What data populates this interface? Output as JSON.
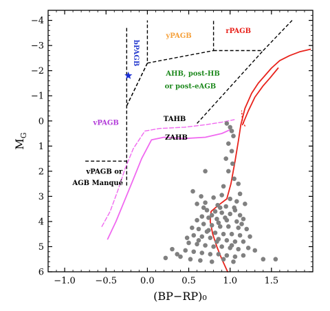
{
  "chart_data": {
    "type": "scatter",
    "xlabel": "(BP−RP)₀",
    "ylabel": "M_G",
    "xlim": [
      -1.2,
      2.0
    ],
    "ylim": [
      6.0,
      -4.4
    ],
    "y_inverted": true,
    "x_ticks": [
      -1.0,
      -0.5,
      0.0,
      0.5,
      1.0,
      1.5
    ],
    "x_tick_labels": [
      "−1.0",
      "−0.5",
      "0.0",
      "0.5",
      "1.0",
      "1.5"
    ],
    "y_ticks": [
      -4,
      -3,
      -2,
      -1,
      0,
      1,
      2,
      3,
      4,
      5,
      6
    ],
    "y_tick_labels": [
      "−4",
      "−3",
      "−2",
      "−1",
      "0",
      "1",
      "2",
      "3",
      "4",
      "5",
      "6"
    ],
    "grid": false,
    "region_labels": [
      {
        "text": "yPAGB",
        "x": 0.38,
        "y": -3.3,
        "color": "#f5a03a"
      },
      {
        "text": "rPAGB",
        "x": 1.1,
        "y": -3.5,
        "color": "#e8221b"
      },
      {
        "text": "bPAGB",
        "x": -0.16,
        "y": -2.7,
        "color": "#2a3fcf",
        "rotated": true
      },
      {
        "text": "AHB, post-HB",
        "x": 0.55,
        "y": -1.8,
        "color": "#1f8a1f"
      },
      {
        "text": "or post-eAGB",
        "x": 0.52,
        "y": -1.3,
        "color": "#1f8a1f"
      },
      {
        "text": "vPAGB",
        "x": -0.5,
        "y": 0.15,
        "color": "#b23bd9"
      },
      {
        "text": "TAHB",
        "x": 0.33,
        "y": 0.0,
        "color": "#000000"
      },
      {
        "text": "ZAHB",
        "x": 0.35,
        "y": 0.75,
        "color": "#000000"
      },
      {
        "text": "vPAGB or",
        "x": -0.52,
        "y": 2.1,
        "color": "#000000"
      },
      {
        "text": "AGB Manqué",
        "x": -0.6,
        "y": 2.55,
        "color": "#000000"
      }
    ],
    "boundary_lines": [
      {
        "points": [
          [
            -0.25,
            -3.7
          ],
          [
            -0.25,
            2.6
          ]
        ]
      },
      {
        "points": [
          [
            -0.25,
            -0.6
          ],
          [
            0.0,
            -2.3
          ],
          [
            0.0,
            -4.0
          ]
        ]
      },
      {
        "points": [
          [
            0.0,
            -2.3
          ],
          [
            0.8,
            -2.8
          ],
          [
            0.8,
            -4.0
          ]
        ]
      },
      {
        "points": [
          [
            0.8,
            -2.8
          ],
          [
            1.4,
            -2.8
          ]
        ]
      },
      {
        "points": [
          [
            1.4,
            -2.8
          ],
          [
            1.75,
            -4.0
          ]
        ]
      },
      {
        "points": [
          [
            -0.25,
            -0.6
          ],
          [
            0.0,
            -2.3
          ]
        ]
      },
      {
        "points": [
          [
            0.6,
            0.1
          ],
          [
            1.4,
            -2.8
          ]
        ]
      },
      {
        "points": [
          [
            -0.75,
            1.6
          ],
          [
            -0.25,
            1.6
          ]
        ]
      }
    ],
    "series": [
      {
        "style": "solid",
        "color": "#e8221b",
        "points": [
          [
            0.97,
            6.0
          ],
          [
            0.9,
            5.5
          ],
          [
            0.84,
            5.0
          ],
          [
            0.79,
            4.5
          ],
          [
            0.76,
            4.0
          ],
          [
            0.77,
            3.6
          ],
          [
            0.86,
            3.35
          ],
          [
            0.96,
            3.1
          ],
          [
            1.01,
            2.5
          ],
          [
            1.06,
            1.6
          ],
          [
            1.1,
            0.8
          ],
          [
            1.13,
            0.15
          ],
          [
            1.18,
            -0.5
          ],
          [
            1.26,
            -1.1
          ],
          [
            1.34,
            -1.5
          ],
          [
            1.42,
            -1.8
          ],
          [
            1.5,
            -2.1
          ],
          [
            1.6,
            -2.4
          ],
          [
            1.72,
            -2.6
          ],
          [
            1.84,
            -2.75
          ],
          [
            1.97,
            -2.85
          ]
        ]
      },
      {
        "style": "solid",
        "color": "#e8221b",
        "points": [
          [
            1.15,
            0.15
          ],
          [
            1.22,
            -0.4
          ],
          [
            1.3,
            -0.95
          ],
          [
            1.4,
            -1.4
          ],
          [
            1.48,
            -1.7
          ],
          [
            1.58,
            -2.1
          ]
        ]
      },
      {
        "style": "dotted",
        "color": "#e8221b",
        "points": [
          [
            1.18,
            0.2
          ],
          [
            1.15,
            0.0
          ],
          [
            1.14,
            -0.4
          ]
        ]
      },
      {
        "style": "solid",
        "color": "#f068f0",
        "points": [
          [
            -0.48,
            4.7
          ],
          [
            -0.38,
            4.0
          ],
          [
            -0.28,
            3.2
          ],
          [
            -0.18,
            2.4
          ],
          [
            -0.07,
            1.5
          ],
          [
            0.05,
            0.75
          ],
          [
            0.2,
            0.65
          ],
          [
            0.45,
            0.7
          ],
          [
            0.7,
            0.65
          ],
          [
            0.9,
            0.5
          ],
          [
            1.0,
            0.35
          ]
        ]
      },
      {
        "style": "dashed",
        "color": "#f068f0",
        "points": [
          [
            -0.55,
            4.2
          ],
          [
            -0.45,
            3.6
          ],
          [
            -0.35,
            2.7
          ],
          [
            -0.27,
            1.9
          ],
          [
            -0.17,
            1.1
          ],
          [
            -0.03,
            0.4
          ],
          [
            0.15,
            0.3
          ],
          [
            0.45,
            0.25
          ],
          [
            0.7,
            0.15
          ],
          [
            0.9,
            0.05
          ],
          [
            1.05,
            -0.05
          ]
        ]
      },
      {
        "style": "marker-star",
        "color": "#1a2fd6",
        "points": [
          [
            -0.23,
            -1.8
          ]
        ]
      },
      {
        "style": "scatter",
        "color": "#808080",
        "points": [
          [
            0.96,
            0.1
          ],
          [
            1.0,
            0.25
          ],
          [
            1.02,
            0.4
          ],
          [
            1.04,
            0.6
          ],
          [
            0.98,
            0.9
          ],
          [
            1.02,
            1.2
          ],
          [
            0.95,
            1.5
          ],
          [
            1.03,
            1.7
          ],
          [
            0.98,
            2.0
          ],
          [
            1.05,
            2.3
          ],
          [
            0.92,
            2.6
          ],
          [
            1.1,
            2.5
          ],
          [
            1.12,
            2.9
          ],
          [
            0.7,
            2.0
          ],
          [
            0.55,
            2.8
          ],
          [
            0.65,
            3.0
          ],
          [
            0.8,
            3.05
          ],
          [
            0.9,
            2.95
          ],
          [
            1.0,
            3.1
          ],
          [
            1.08,
            3.2
          ],
          [
            1.18,
            3.3
          ],
          [
            0.6,
            3.3
          ],
          [
            0.7,
            3.25
          ],
          [
            0.85,
            3.35
          ],
          [
            0.95,
            3.4
          ],
          [
            1.05,
            3.45
          ],
          [
            0.72,
            3.55
          ],
          [
            0.82,
            3.6
          ],
          [
            0.9,
            3.65
          ],
          [
            1.0,
            3.7
          ],
          [
            1.12,
            3.75
          ],
          [
            0.66,
            3.8
          ],
          [
            0.74,
            3.85
          ],
          [
            0.84,
            3.9
          ],
          [
            0.96,
            3.95
          ],
          [
            1.08,
            4.0
          ],
          [
            0.68,
            4.1
          ],
          [
            0.78,
            4.15
          ],
          [
            0.88,
            4.2
          ],
          [
            0.98,
            4.2
          ],
          [
            1.1,
            4.25
          ],
          [
            1.2,
            4.3
          ],
          [
            0.62,
            4.3
          ],
          [
            0.72,
            4.4
          ],
          [
            0.82,
            4.45
          ],
          [
            0.92,
            4.5
          ],
          [
            1.02,
            4.5
          ],
          [
            1.12,
            4.55
          ],
          [
            0.56,
            4.55
          ],
          [
            0.66,
            4.6
          ],
          [
            0.76,
            4.65
          ],
          [
            0.86,
            4.7
          ],
          [
            0.96,
            4.75
          ],
          [
            1.06,
            4.8
          ],
          [
            1.16,
            4.8
          ],
          [
            0.5,
            4.85
          ],
          [
            0.6,
            4.9
          ],
          [
            0.7,
            4.95
          ],
          [
            0.8,
            5.0
          ],
          [
            0.9,
            5.0
          ],
          [
            1.0,
            5.05
          ],
          [
            1.1,
            5.1
          ],
          [
            1.22,
            5.05
          ],
          [
            0.46,
            5.15
          ],
          [
            0.56,
            5.2
          ],
          [
            0.66,
            5.25
          ],
          [
            0.76,
            5.3
          ],
          [
            0.86,
            5.3
          ],
          [
            0.96,
            5.35
          ],
          [
            1.06,
            5.4
          ],
          [
            1.16,
            5.35
          ],
          [
            0.4,
            5.4
          ],
          [
            0.52,
            5.5
          ],
          [
            0.64,
            5.55
          ],
          [
            0.78,
            5.6
          ],
          [
            0.92,
            5.5
          ],
          [
            1.04,
            5.6
          ],
          [
            0.3,
            5.1
          ],
          [
            0.36,
            5.3
          ],
          [
            0.22,
            5.45
          ],
          [
            0.62,
            4.75
          ],
          [
            0.74,
            4.35
          ],
          [
            0.86,
            4.05
          ],
          [
            0.94,
            3.85
          ],
          [
            1.14,
            4.1
          ],
          [
            1.24,
            4.6
          ],
          [
            1.3,
            5.15
          ],
          [
            1.4,
            5.5
          ],
          [
            1.55,
            5.5
          ],
          [
            0.48,
            4.65
          ],
          [
            0.54,
            4.25
          ],
          [
            0.6,
            3.95
          ],
          [
            0.78,
            3.75
          ],
          [
            1.06,
            3.55
          ],
          [
            1.16,
            3.9
          ],
          [
            0.88,
            3.45
          ],
          [
            0.68,
            3.45
          ],
          [
            0.84,
            4.8
          ],
          [
            1.02,
            4.95
          ]
        ]
      }
    ]
  }
}
